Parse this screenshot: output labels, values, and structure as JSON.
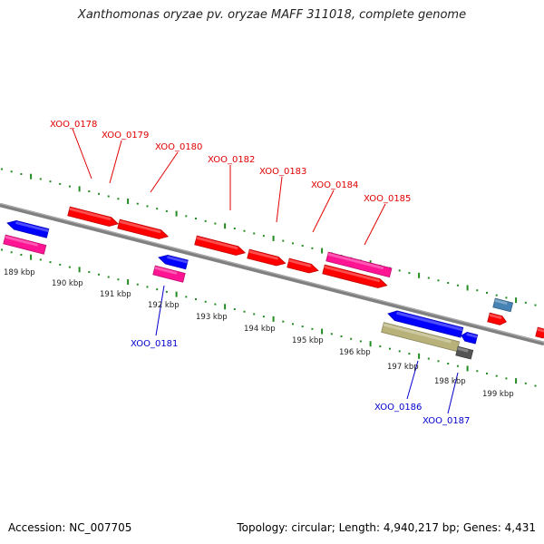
{
  "title": "Xanthomonas oryzae pv. oryzae MAFF 311018, complete genome",
  "footer": {
    "accession": "Accession: NC_007705",
    "summary": "Topology: circular; Length: 4,940,217 bp; Genes: 4,431"
  },
  "colors": {
    "backbone": "#808080",
    "tick": "#228b22",
    "forward_label": "#e00000",
    "reverse_label": "#0000cc",
    "forward_gene": "#ff0000",
    "reverse_gene": "#0000ff",
    "pink_gene": "#ff1493",
    "olive_gene": "#b8b27a",
    "gray_gene": "#555555",
    "steel_gene": "#4682b4"
  },
  "kbp_labels": [
    "189 kbp",
    "190 kbp",
    "191 kbp",
    "192 kbp",
    "193 kbp",
    "194 kbp",
    "195 kbp",
    "196 kbp",
    "197 kbp",
    "198 kbp",
    "199 kbp"
  ],
  "forward_labels": [
    "XOO_0178",
    "XOO_0179",
    "XOO_0180",
    "XOO_0182",
    "XOO_0183",
    "XOO_0184",
    "XOO_0185"
  ],
  "reverse_labels": [
    "XOO_0181",
    "XOO_0186",
    "XOO_0187"
  ]
}
